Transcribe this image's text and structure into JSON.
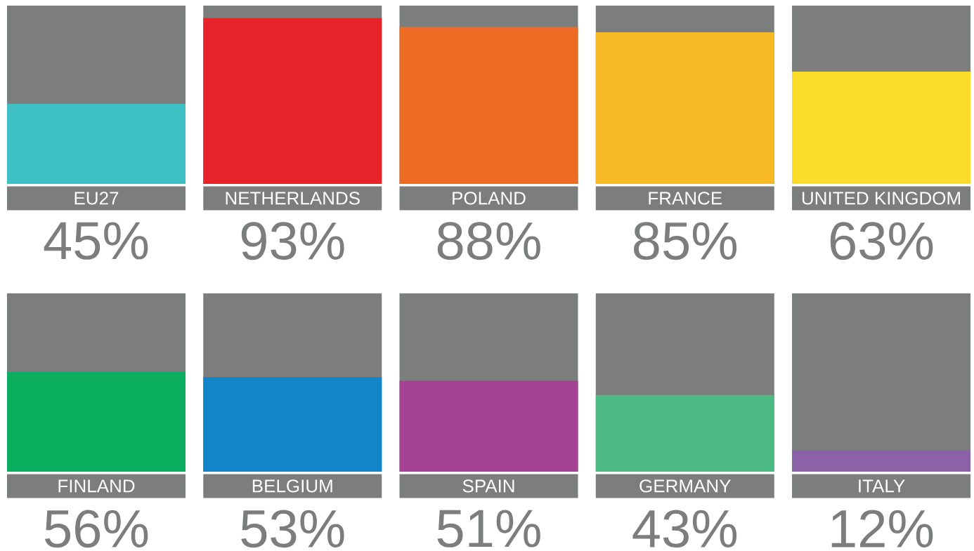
{
  "chart_data": [
    {
      "type": "bar",
      "categories": [
        "EU27",
        "NETHERLANDS",
        "POLAND",
        "FRANCE",
        "UNITED KINGDOM"
      ],
      "values": [
        45,
        93,
        88,
        85,
        63
      ],
      "colors": [
        "#3dbfc4",
        "#e8242b",
        "#ee6b23",
        "#f8b927",
        "#fcdc2b"
      ],
      "value_labels": [
        "45%",
        "93%",
        "88%",
        "85%",
        "63%"
      ],
      "ylim": [
        0,
        100
      ],
      "tick_labels": "x"
    },
    {
      "type": "bar",
      "categories": [
        "FINLAND",
        "BELGIUM",
        "SPAIN",
        "GERMANY",
        "ITALY"
      ],
      "values": [
        56,
        53,
        51,
        43,
        12
      ],
      "colors": [
        "#0bae5f",
        "#1384c8",
        "#a54293",
        "#4fbb84",
        "#8b62a7"
      ],
      "value_labels": [
        "56%",
        "53%",
        "51%",
        "43%",
        "12%"
      ],
      "ylim": [
        0,
        100
      ],
      "tick_labels": "x"
    }
  ]
}
